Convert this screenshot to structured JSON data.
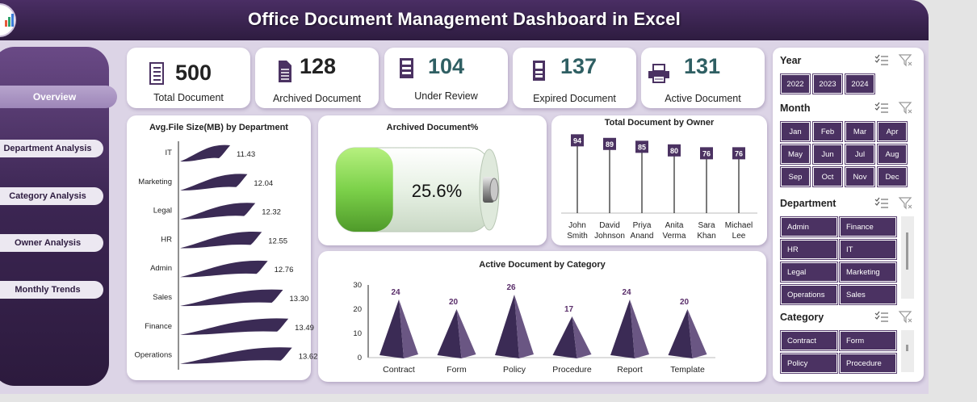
{
  "header": {
    "title": "Office Document Management Dashboard in Excel"
  },
  "nav": [
    {
      "label": "Overview",
      "active": true
    },
    {
      "label": "Department Analysis",
      "active": false
    },
    {
      "label": "Category Analysis",
      "active": false
    },
    {
      "label": "Owner Analysis",
      "active": false
    },
    {
      "label": "Monthly Trends",
      "active": false
    }
  ],
  "kpis": [
    {
      "value": "500",
      "label": "Total Document",
      "icon": "document-list-icon"
    },
    {
      "value": "128",
      "label": "Archived Document",
      "icon": "archived-document-icon"
    },
    {
      "value": "104",
      "label": "Under Review",
      "icon": "review-document-icon"
    },
    {
      "value": "137",
      "label": "Expired Document",
      "icon": "expired-document-icon"
    },
    {
      "value": "131",
      "label": "Active Document",
      "icon": "printer-icon"
    }
  ],
  "charts": {
    "file_size": {
      "title": "Avg.File Size(MB) by Department",
      "chart_data": {
        "type": "bar",
        "categories": [
          "IT",
          "Marketing",
          "Legal",
          "HR",
          "Admin",
          "Sales",
          "Finance",
          "Operations"
        ],
        "values": [
          11.43,
          12.04,
          12.32,
          12.55,
          12.76,
          13.3,
          13.49,
          13.62
        ],
        "labels": [
          "11.43",
          "12.04",
          "12.32",
          "12.55",
          "12.76",
          "13.30",
          "13.49",
          "13.62"
        ]
      }
    },
    "archived": {
      "title": "Archived Document%",
      "value_label": "25.6%",
      "fill_fraction": 0.256
    },
    "owner": {
      "title": "Total Document by Owner",
      "chart_data": {
        "type": "bar",
        "categories": [
          "John Smith",
          "David Johnson",
          "Priya Anand",
          "Anita Verma",
          "Sara Khan",
          "Michael Lee"
        ],
        "name_lines": [
          [
            "John",
            "Smith"
          ],
          [
            "David",
            "Johnson"
          ],
          [
            "Priya",
            "Anand"
          ],
          [
            "Anita",
            "Verma"
          ],
          [
            "Sara",
            "Khan"
          ],
          [
            "Michael",
            "Lee"
          ]
        ],
        "values": [
          94,
          89,
          85,
          80,
          76,
          76
        ]
      }
    },
    "category": {
      "title": "Active Document by Category",
      "chart_data": {
        "type": "bar",
        "categories": [
          "Contract",
          "Form",
          "Policy",
          "Procedure",
          "Report",
          "Template"
        ],
        "values": [
          24,
          20,
          26,
          17,
          24,
          20
        ],
        "yticks": [
          "0",
          "10",
          "20",
          "30"
        ],
        "ylim": [
          0,
          30
        ]
      }
    }
  },
  "slicers": {
    "year": {
      "title": "Year",
      "items": [
        "2022",
        "2023",
        "2024"
      ]
    },
    "month": {
      "title": "Month",
      "items": [
        "Jan",
        "Feb",
        "Mar",
        "Apr",
        "May",
        "Jun",
        "Jul",
        "Aug",
        "Sep",
        "Oct",
        "Nov",
        "Dec"
      ]
    },
    "department": {
      "title": "Department",
      "items": [
        "Admin",
        "Finance",
        "HR",
        "IT",
        "Legal",
        "Marketing",
        "Operations",
        "Sales"
      ]
    },
    "category": {
      "title": "Category",
      "items": [
        "Contract",
        "Form",
        "Policy",
        "Procedure"
      ]
    }
  },
  "colors": {
    "header": "#3b2652",
    "accent": "#4b3262",
    "battery_fill": "#7cd14a",
    "chart_fill": "#3b2b55"
  }
}
